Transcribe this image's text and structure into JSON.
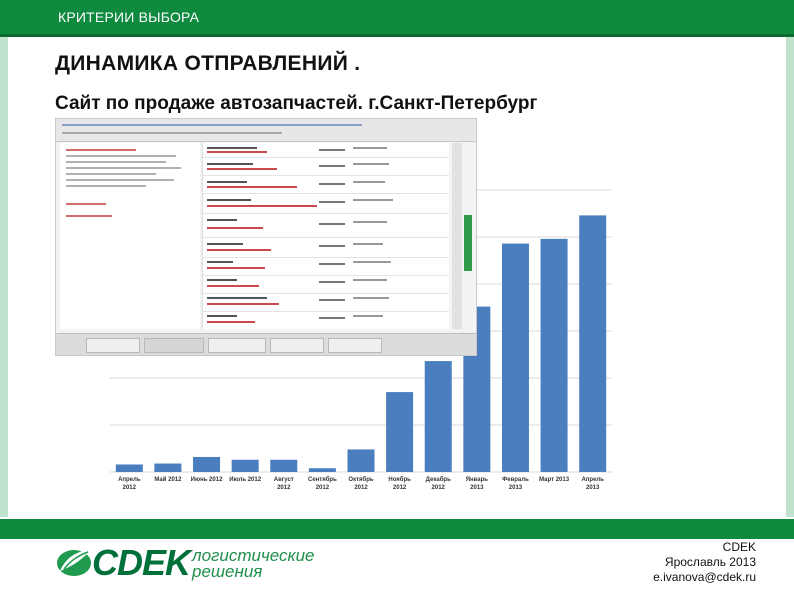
{
  "header": {
    "section": "КРИТЕРИИ ВЫБОРА"
  },
  "title": "ДИНАМИКА ОТПРАВЛЕНИЙ .",
  "subtitle": "Сайт по продаже автозапчастей. г.Санкт-Петербург",
  "colors": {
    "brand_green": "#0e8a3e",
    "bar": "#4a7ebf"
  },
  "chart_data": {
    "type": "bar",
    "categories": [
      "Апрель 2012",
      "Май 2012",
      "Июнь 2012",
      "Июль 2012",
      "Август 2012",
      "Сентябрь 2012",
      "Октябрь 2012",
      "Ноябрь 2012",
      "Декабрь 2012",
      "Январь 2013",
      "Февраль 2013",
      "Март 2013",
      "Апрель 2013"
    ],
    "values": [
      8,
      9,
      16,
      13,
      13,
      4,
      24,
      85,
      118,
      176,
      243,
      248,
      273
    ],
    "ylim": [
      0,
      300
    ],
    "grid": true,
    "legend": "none",
    "title": "",
    "xlabel": "",
    "ylabel": ""
  },
  "brand": {
    "logo_word": "СDEK",
    "tagline_line1": "логистические",
    "tagline_line2": "решения"
  },
  "footer": {
    "company": "CDEK",
    "city_year": "Ярославль 2013",
    "email": "e.ivanova@cdek.ru"
  }
}
